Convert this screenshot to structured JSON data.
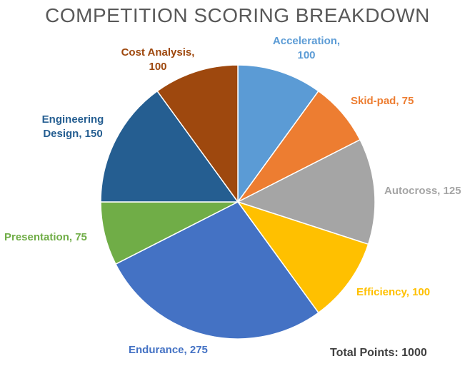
{
  "chart_data": {
    "type": "pie",
    "title": "COMPETITION SCORING BREAKDOWN",
    "slices": [
      {
        "label": "Acceleration",
        "value": 100,
        "color": "#5b9bd5"
      },
      {
        "label": "Skid-pad",
        "value": 75,
        "color": "#ed7d31"
      },
      {
        "label": "Autocross",
        "value": 125,
        "color": "#a5a5a5"
      },
      {
        "label": "Efficiency",
        "value": 100,
        "color": "#ffc000"
      },
      {
        "label": "Endurance",
        "value": 275,
        "color": "#4472c4"
      },
      {
        "label": "Presentation",
        "value": 75,
        "color": "#70ad47"
      },
      {
        "label": "Engineering Design",
        "value": 150,
        "color": "#255e91"
      },
      {
        "label": "Cost Analysis",
        "value": 100,
        "color": "#9e480e"
      }
    ],
    "data_labels": [
      [
        "Acceleration,",
        "100"
      ],
      [
        "Skid-pad, 75"
      ],
      [
        "Autocross, 125"
      ],
      [
        "Efficiency, 100"
      ],
      [
        "Endurance, 275"
      ],
      [
        "Presentation, 75"
      ],
      [
        "Engineering",
        "Design, 150"
      ],
      [
        "Cost Analysis,",
        "100"
      ]
    ],
    "total_label": "Total Points:",
    "total_value": "1000"
  }
}
